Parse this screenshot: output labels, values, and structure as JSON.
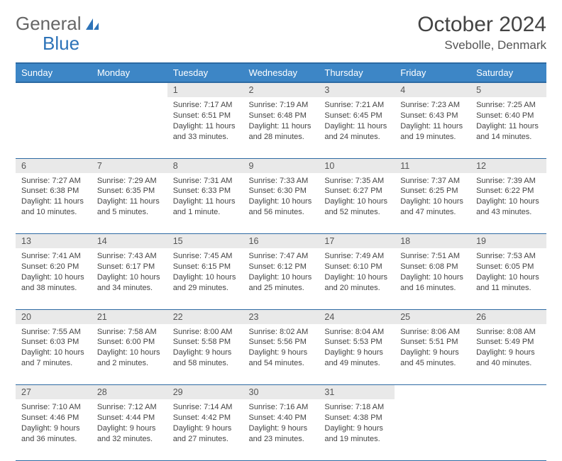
{
  "logo": {
    "text1": "General",
    "text2": "Blue",
    "icon_color": "#2d73b8"
  },
  "title": "October 2024",
  "location": "Svebolle, Denmark",
  "colors": {
    "header_bg": "#3d86c6",
    "header_border": "#2d6aa3",
    "daynum_bg": "#e9e9e9",
    "text": "#444444"
  },
  "weekdays": [
    "Sunday",
    "Monday",
    "Tuesday",
    "Wednesday",
    "Thursday",
    "Friday",
    "Saturday"
  ],
  "weeks": [
    [
      null,
      null,
      {
        "n": "1",
        "sr": "Sunrise: 7:17 AM",
        "ss": "Sunset: 6:51 PM",
        "dl": "Daylight: 11 hours and 33 minutes."
      },
      {
        "n": "2",
        "sr": "Sunrise: 7:19 AM",
        "ss": "Sunset: 6:48 PM",
        "dl": "Daylight: 11 hours and 28 minutes."
      },
      {
        "n": "3",
        "sr": "Sunrise: 7:21 AM",
        "ss": "Sunset: 6:45 PM",
        "dl": "Daylight: 11 hours and 24 minutes."
      },
      {
        "n": "4",
        "sr": "Sunrise: 7:23 AM",
        "ss": "Sunset: 6:43 PM",
        "dl": "Daylight: 11 hours and 19 minutes."
      },
      {
        "n": "5",
        "sr": "Sunrise: 7:25 AM",
        "ss": "Sunset: 6:40 PM",
        "dl": "Daylight: 11 hours and 14 minutes."
      }
    ],
    [
      {
        "n": "6",
        "sr": "Sunrise: 7:27 AM",
        "ss": "Sunset: 6:38 PM",
        "dl": "Daylight: 11 hours and 10 minutes."
      },
      {
        "n": "7",
        "sr": "Sunrise: 7:29 AM",
        "ss": "Sunset: 6:35 PM",
        "dl": "Daylight: 11 hours and 5 minutes."
      },
      {
        "n": "8",
        "sr": "Sunrise: 7:31 AM",
        "ss": "Sunset: 6:33 PM",
        "dl": "Daylight: 11 hours and 1 minute."
      },
      {
        "n": "9",
        "sr": "Sunrise: 7:33 AM",
        "ss": "Sunset: 6:30 PM",
        "dl": "Daylight: 10 hours and 56 minutes."
      },
      {
        "n": "10",
        "sr": "Sunrise: 7:35 AM",
        "ss": "Sunset: 6:27 PM",
        "dl": "Daylight: 10 hours and 52 minutes."
      },
      {
        "n": "11",
        "sr": "Sunrise: 7:37 AM",
        "ss": "Sunset: 6:25 PM",
        "dl": "Daylight: 10 hours and 47 minutes."
      },
      {
        "n": "12",
        "sr": "Sunrise: 7:39 AM",
        "ss": "Sunset: 6:22 PM",
        "dl": "Daylight: 10 hours and 43 minutes."
      }
    ],
    [
      {
        "n": "13",
        "sr": "Sunrise: 7:41 AM",
        "ss": "Sunset: 6:20 PM",
        "dl": "Daylight: 10 hours and 38 minutes."
      },
      {
        "n": "14",
        "sr": "Sunrise: 7:43 AM",
        "ss": "Sunset: 6:17 PM",
        "dl": "Daylight: 10 hours and 34 minutes."
      },
      {
        "n": "15",
        "sr": "Sunrise: 7:45 AM",
        "ss": "Sunset: 6:15 PM",
        "dl": "Daylight: 10 hours and 29 minutes."
      },
      {
        "n": "16",
        "sr": "Sunrise: 7:47 AM",
        "ss": "Sunset: 6:12 PM",
        "dl": "Daylight: 10 hours and 25 minutes."
      },
      {
        "n": "17",
        "sr": "Sunrise: 7:49 AM",
        "ss": "Sunset: 6:10 PM",
        "dl": "Daylight: 10 hours and 20 minutes."
      },
      {
        "n": "18",
        "sr": "Sunrise: 7:51 AM",
        "ss": "Sunset: 6:08 PM",
        "dl": "Daylight: 10 hours and 16 minutes."
      },
      {
        "n": "19",
        "sr": "Sunrise: 7:53 AM",
        "ss": "Sunset: 6:05 PM",
        "dl": "Daylight: 10 hours and 11 minutes."
      }
    ],
    [
      {
        "n": "20",
        "sr": "Sunrise: 7:55 AM",
        "ss": "Sunset: 6:03 PM",
        "dl": "Daylight: 10 hours and 7 minutes."
      },
      {
        "n": "21",
        "sr": "Sunrise: 7:58 AM",
        "ss": "Sunset: 6:00 PM",
        "dl": "Daylight: 10 hours and 2 minutes."
      },
      {
        "n": "22",
        "sr": "Sunrise: 8:00 AM",
        "ss": "Sunset: 5:58 PM",
        "dl": "Daylight: 9 hours and 58 minutes."
      },
      {
        "n": "23",
        "sr": "Sunrise: 8:02 AM",
        "ss": "Sunset: 5:56 PM",
        "dl": "Daylight: 9 hours and 54 minutes."
      },
      {
        "n": "24",
        "sr": "Sunrise: 8:04 AM",
        "ss": "Sunset: 5:53 PM",
        "dl": "Daylight: 9 hours and 49 minutes."
      },
      {
        "n": "25",
        "sr": "Sunrise: 8:06 AM",
        "ss": "Sunset: 5:51 PM",
        "dl": "Daylight: 9 hours and 45 minutes."
      },
      {
        "n": "26",
        "sr": "Sunrise: 8:08 AM",
        "ss": "Sunset: 5:49 PM",
        "dl": "Daylight: 9 hours and 40 minutes."
      }
    ],
    [
      {
        "n": "27",
        "sr": "Sunrise: 7:10 AM",
        "ss": "Sunset: 4:46 PM",
        "dl": "Daylight: 9 hours and 36 minutes."
      },
      {
        "n": "28",
        "sr": "Sunrise: 7:12 AM",
        "ss": "Sunset: 4:44 PM",
        "dl": "Daylight: 9 hours and 32 minutes."
      },
      {
        "n": "29",
        "sr": "Sunrise: 7:14 AM",
        "ss": "Sunset: 4:42 PM",
        "dl": "Daylight: 9 hours and 27 minutes."
      },
      {
        "n": "30",
        "sr": "Sunrise: 7:16 AM",
        "ss": "Sunset: 4:40 PM",
        "dl": "Daylight: 9 hours and 23 minutes."
      },
      {
        "n": "31",
        "sr": "Sunrise: 7:18 AM",
        "ss": "Sunset: 4:38 PM",
        "dl": "Daylight: 9 hours and 19 minutes."
      },
      null,
      null
    ]
  ]
}
